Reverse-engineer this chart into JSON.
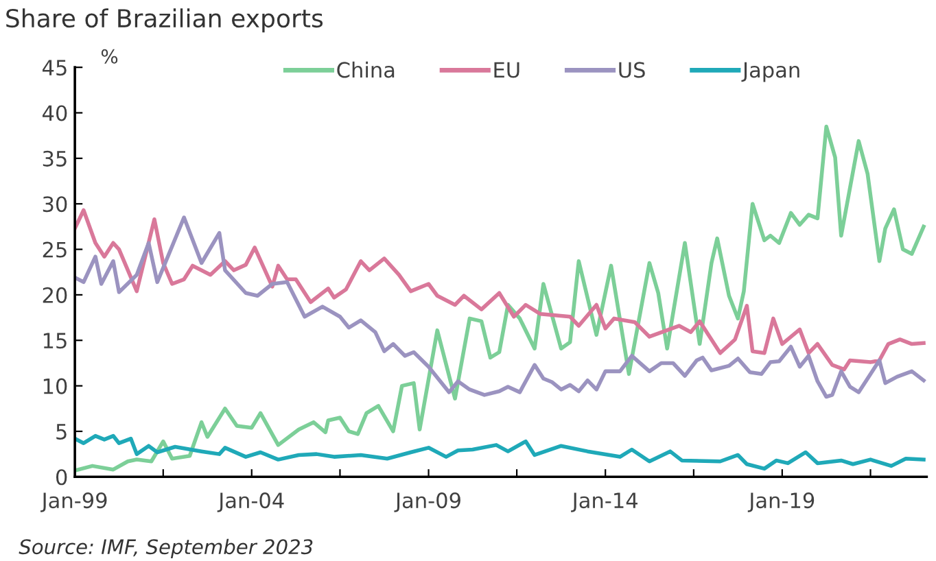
{
  "chart_data": {
    "type": "line",
    "title": "Share of Brazilian exports",
    "ylabel": "%",
    "annotations": [
      "Source: IMF, September 2023"
    ],
    "xlim": [
      "1999-01",
      "2023-02"
    ],
    "ylim": [
      0,
      45
    ],
    "yticks": [
      0,
      5,
      10,
      15,
      20,
      25,
      30,
      35,
      40,
      45
    ],
    "xticks": [
      {
        "value": "1999-01",
        "label": "Jan-99"
      },
      {
        "value": "2001-07",
        "label": null
      },
      {
        "value": "2004-01",
        "label": "Jan-04"
      },
      {
        "value": "2006-07",
        "label": null
      },
      {
        "value": "2009-01",
        "label": "Jan-09"
      },
      {
        "value": "2011-07",
        "label": null
      },
      {
        "value": "2014-01",
        "label": "Jan-14"
      },
      {
        "value": "2016-07",
        "label": null
      },
      {
        "value": "2019-01",
        "label": "Jan-19"
      },
      {
        "value": "2021-07",
        "label": null
      }
    ],
    "grid": false,
    "legend": "top",
    "marker": "none",
    "line_style": "solid",
    "series": [
      {
        "name": "China",
        "color": "#7ccf98",
        "x": [
          "1999-01",
          "1999-07",
          "2000-02",
          "2000-07",
          "2000-10",
          "2001-03",
          "2001-07",
          "2001-10",
          "2002-04",
          "2002-08",
          "2002-10",
          "2003-04",
          "2003-08",
          "2004-01",
          "2004-04",
          "2004-10",
          "2005-05",
          "2005-10",
          "2006-02",
          "2006-03",
          "2006-07",
          "2006-10",
          "2007-01",
          "2007-04",
          "2007-08",
          "2008-01",
          "2008-04",
          "2008-08",
          "2008-10",
          "2009-04",
          "2009-10",
          "2010-03",
          "2010-07",
          "2010-10",
          "2011-01",
          "2011-04",
          "2011-08",
          "2012-01",
          "2012-04",
          "2012-10",
          "2013-01",
          "2013-04",
          "2013-10",
          "2014-03",
          "2014-09",
          "2015-04",
          "2015-07",
          "2015-10",
          "2016-04",
          "2016-09",
          "2017-01",
          "2017-03",
          "2017-07",
          "2017-10",
          "2017-12",
          "2018-03",
          "2018-07",
          "2018-09",
          "2018-12",
          "2019-04",
          "2019-07",
          "2019-10",
          "2020-01",
          "2020-04",
          "2020-07",
          "2020-09",
          "2021-03",
          "2021-06",
          "2021-10",
          "2021-12",
          "2022-03",
          "2022-06",
          "2022-09",
          "2023-01"
        ],
        "values": [
          0.7,
          1.2,
          0.8,
          1.7,
          1.9,
          1.7,
          3.9,
          2.0,
          2.3,
          6.0,
          4.4,
          7.5,
          5.6,
          5.4,
          7.0,
          3.5,
          5.2,
          6.0,
          4.9,
          6.2,
          6.5,
          5.0,
          4.7,
          7.0,
          7.8,
          5.0,
          10.0,
          10.3,
          5.2,
          16.1,
          8.6,
          17.4,
          17.1,
          13.1,
          13.7,
          18.9,
          17.4,
          14.1,
          21.2,
          14.1,
          14.8,
          23.7,
          15.6,
          23.2,
          11.3,
          23.5,
          20.2,
          14.1,
          25.7,
          14.6,
          23.5,
          26.2,
          19.9,
          17.4,
          20.4,
          30.0,
          26.0,
          26.5,
          25.7,
          29.0,
          27.7,
          28.8,
          28.4,
          38.5,
          35.1,
          26.5,
          36.9,
          33.3,
          23.7,
          27.3,
          29.4,
          25.0,
          24.5,
          27.5
        ]
      },
      {
        "name": "EU",
        "color": "#d9789a",
        "x": [
          "1999-01",
          "1999-04",
          "1999-08",
          "1999-11",
          "2000-02",
          "2000-04",
          "2000-10",
          "2001-04",
          "2001-07",
          "2001-10",
          "2002-02",
          "2002-05",
          "2002-11",
          "2003-04",
          "2003-07",
          "2003-11",
          "2004-02",
          "2004-08",
          "2004-10",
          "2005-01",
          "2005-04",
          "2005-09",
          "2006-03",
          "2006-05",
          "2006-09",
          "2007-02",
          "2007-05",
          "2007-10",
          "2008-03",
          "2008-07",
          "2009-01",
          "2009-04",
          "2009-10",
          "2010-01",
          "2010-07",
          "2011-01",
          "2011-06",
          "2011-10",
          "2012-03",
          "2013-01",
          "2013-04",
          "2013-10",
          "2014-01",
          "2014-04",
          "2014-11",
          "2015-04",
          "2016-02",
          "2016-06",
          "2016-09",
          "2017-04",
          "2017-09",
          "2018-01",
          "2018-03",
          "2018-07",
          "2018-10",
          "2019-01",
          "2019-07",
          "2019-10",
          "2020-01",
          "2020-06",
          "2020-10",
          "2020-12",
          "2021-07",
          "2021-10",
          "2022-01",
          "2022-05",
          "2022-09",
          "2023-01"
        ],
        "values": [
          27.3,
          29.3,
          25.7,
          24.2,
          25.7,
          25.0,
          20.4,
          28.3,
          23.5,
          21.2,
          21.7,
          23.2,
          22.2,
          23.7,
          22.7,
          23.3,
          25.2,
          20.9,
          23.2,
          21.7,
          21.7,
          19.2,
          20.7,
          19.7,
          20.6,
          23.7,
          22.7,
          24.0,
          22.2,
          20.4,
          21.2,
          19.9,
          18.9,
          19.9,
          18.4,
          20.2,
          17.6,
          18.9,
          17.9,
          17.6,
          16.6,
          18.9,
          16.3,
          17.4,
          17.0,
          15.4,
          16.6,
          15.9,
          17.1,
          13.6,
          15.1,
          18.8,
          13.8,
          13.6,
          17.4,
          14.6,
          16.2,
          13.6,
          14.6,
          12.3,
          11.8,
          12.8,
          12.6,
          12.8,
          14.6,
          15.1,
          14.6,
          14.7
        ]
      },
      {
        "name": "US",
        "color": "#9b93c0",
        "x": [
          "1999-01",
          "1999-04",
          "1999-08",
          "1999-10",
          "2000-02",
          "2000-04",
          "2000-10",
          "2001-02",
          "2001-05",
          "2002-02",
          "2002-08",
          "2003-02",
          "2003-04",
          "2003-11",
          "2004-03",
          "2004-08",
          "2005-01",
          "2005-07",
          "2006-01",
          "2006-07",
          "2006-10",
          "2007-02",
          "2007-07",
          "2007-10",
          "2008-01",
          "2008-05",
          "2008-08",
          "2009-01",
          "2009-08",
          "2009-11",
          "2010-03",
          "2010-08",
          "2011-01",
          "2011-04",
          "2011-08",
          "2012-01",
          "2012-04",
          "2012-07",
          "2012-10",
          "2013-01",
          "2013-04",
          "2013-07",
          "2013-10",
          "2014-01",
          "2014-06",
          "2014-10",
          "2015-04",
          "2015-08",
          "2015-12",
          "2016-04",
          "2016-08",
          "2016-10",
          "2017-01",
          "2017-07",
          "2017-10",
          "2018-02",
          "2018-06",
          "2018-09",
          "2018-12",
          "2019-04",
          "2019-07",
          "2019-10",
          "2020-01",
          "2020-04",
          "2020-06",
          "2020-09",
          "2020-12",
          "2021-03",
          "2021-10",
          "2021-12",
          "2022-04",
          "2022-09",
          "2023-01"
        ],
        "values": [
          21.9,
          21.4,
          24.2,
          21.2,
          23.7,
          20.3,
          22.2,
          25.7,
          21.4,
          28.5,
          23.5,
          26.8,
          22.7,
          20.2,
          19.9,
          21.2,
          21.4,
          17.6,
          18.7,
          17.6,
          16.4,
          17.2,
          15.9,
          13.8,
          14.6,
          13.3,
          13.7,
          12.1,
          9.3,
          10.5,
          9.6,
          9.0,
          9.4,
          9.9,
          9.3,
          12.3,
          10.8,
          10.4,
          9.6,
          10.1,
          9.4,
          10.6,
          9.6,
          11.6,
          11.6,
          13.3,
          11.6,
          12.5,
          12.5,
          11.1,
          12.8,
          13.1,
          11.7,
          12.2,
          13.0,
          11.5,
          11.3,
          12.6,
          12.7,
          14.3,
          12.1,
          13.3,
          10.5,
          8.8,
          9.0,
          11.6,
          9.9,
          9.3,
          12.8,
          10.3,
          11.0,
          11.6,
          10.6
        ]
      },
      {
        "name": "Japan",
        "color": "#1fa9b8",
        "x": [
          "1999-01",
          "1999-04",
          "1999-08",
          "1999-11",
          "2000-02",
          "2000-04",
          "2000-08",
          "2000-10",
          "2001-02",
          "2001-05",
          "2001-11",
          "2002-08",
          "2003-02",
          "2003-04",
          "2003-11",
          "2004-04",
          "2004-10",
          "2005-05",
          "2005-11",
          "2006-05",
          "2007-02",
          "2007-11",
          "2008-07",
          "2009-01",
          "2009-07",
          "2009-11",
          "2010-04",
          "2010-12",
          "2011-04",
          "2011-10",
          "2012-01",
          "2012-10",
          "2013-07",
          "2014-06",
          "2014-10",
          "2015-04",
          "2015-11",
          "2016-03",
          "2017-04",
          "2017-10",
          "2018-01",
          "2018-07",
          "2018-11",
          "2019-03",
          "2019-09",
          "2020-01",
          "2020-09",
          "2021-01",
          "2021-07",
          "2022-02",
          "2022-07",
          "2023-01"
        ],
        "values": [
          4.2,
          3.7,
          4.5,
          4.1,
          4.5,
          3.7,
          4.2,
          2.5,
          3.4,
          2.7,
          3.3,
          2.8,
          2.5,
          3.2,
          2.2,
          2.7,
          1.9,
          2.4,
          2.5,
          2.2,
          2.4,
          2.0,
          2.7,
          3.2,
          2.2,
          2.9,
          3.0,
          3.5,
          2.8,
          3.9,
          2.4,
          3.4,
          2.8,
          2.2,
          3.0,
          1.7,
          2.8,
          1.8,
          1.7,
          2.4,
          1.4,
          0.9,
          1.8,
          1.5,
          2.7,
          1.5,
          1.8,
          1.4,
          1.9,
          1.2,
          2.0,
          1.9
        ]
      }
    ]
  }
}
